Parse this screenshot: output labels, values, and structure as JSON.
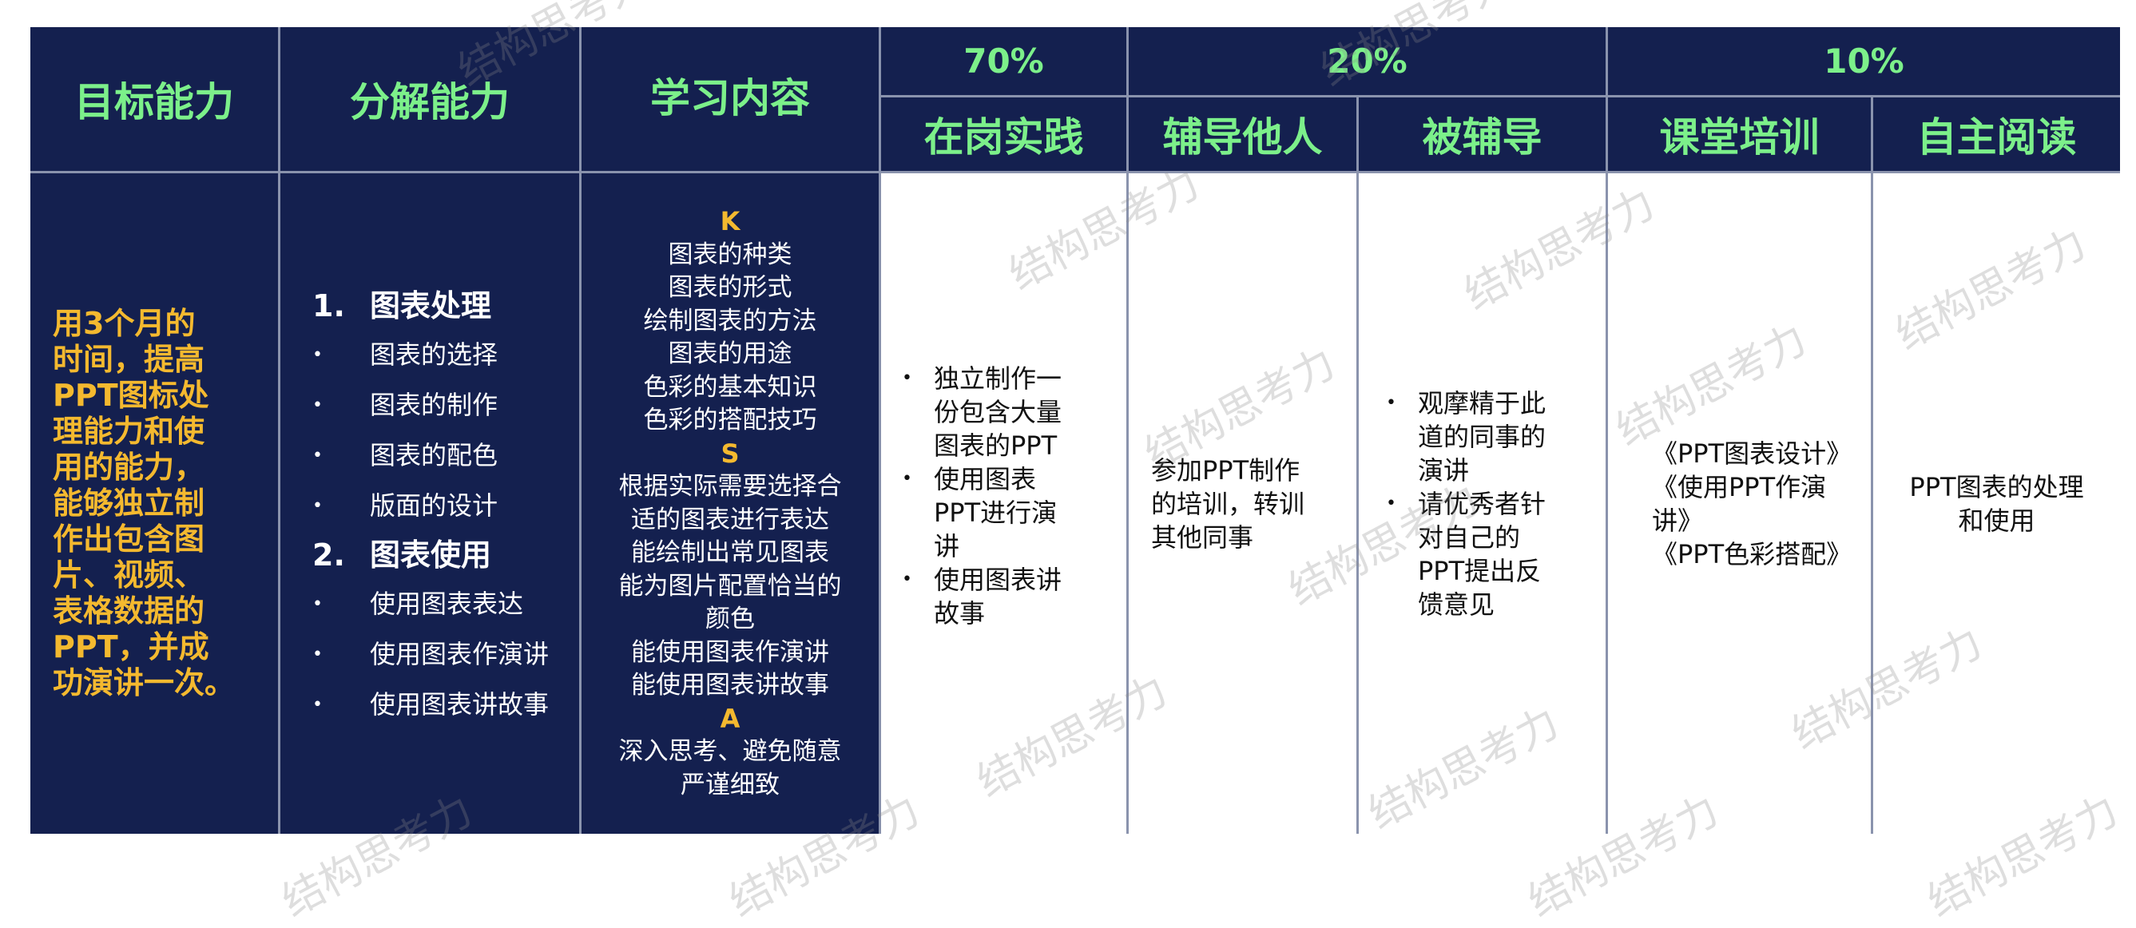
{
  "headers": {
    "goal": "目标能力",
    "decompose": "分解能力",
    "learning": "学习内容",
    "pct70": "70%",
    "pct20": "20%",
    "pct10": "10%",
    "onjob": "在岗实践",
    "coach_others": "辅导他人",
    "being_coached": "被辅导",
    "classroom": "课堂培训",
    "self_reading": "自主阅读"
  },
  "goal_text": "用3个月的时间，提高PPT图标处理能力和使用的能力，能够独立制作出包含图片、视频、表格数据的PPT，并成功演讲一次。",
  "goal_lines": [
    "用3个月的",
    "时间，提高",
    "PPT图标处",
    "理能力和使",
    "用的能力，",
    "能够独立制",
    "作出包含图",
    "片、视频、",
    "表格数据的",
    "PPT，并成",
    "功演讲一次。"
  ],
  "decompose": {
    "sections": [
      {
        "num": "1.",
        "title": "图表处理",
        "items": [
          "图表的选择",
          "图表的制作",
          "图表的配色",
          "版面的设计"
        ]
      },
      {
        "num": "2.",
        "title": "图表使用",
        "items": [
          "使用图表表达",
          "使用图表作演讲",
          "使用图表讲故事"
        ]
      }
    ]
  },
  "learning": {
    "k_letter": "K",
    "k_lines": [
      "图表的种类",
      "图表的形式",
      "绘制图表的方法",
      "图表的用途",
      "色彩的基本知识",
      "色彩的搭配技巧"
    ],
    "s_letter": "S",
    "s_lines": [
      "根据实际需要选择合",
      "适的图表进行表达",
      "能绘制出常见图表",
      "能为图片配置恰当的",
      "颜色",
      "能使用图表作演讲",
      "能使用图表讲故事"
    ],
    "a_letter": "A",
    "a_lines": [
      "深入思考、避免随意",
      "严谨细致"
    ]
  },
  "onjob": {
    "bullets": [
      [
        "独立制作一",
        "份包含大量",
        "图表的PPT"
      ],
      [
        "使用图表",
        "PPT进行演",
        "讲"
      ],
      [
        "使用图表讲",
        "故事"
      ]
    ]
  },
  "coach_others": {
    "lines": [
      "参加PPT制作",
      "的培训，转训",
      "其他同事"
    ]
  },
  "being_coached": {
    "bullets": [
      [
        "观摩精于此",
        "道的同事的",
        "演讲"
      ],
      [
        "请优秀者针",
        "对自己的",
        "PPT提出反",
        "馈意见"
      ]
    ]
  },
  "classroom": {
    "lines": [
      "《PPT图表设计》",
      "《使用PPT作演讲》",
      "《PPT色彩搭配》"
    ]
  },
  "self_reading": {
    "lines": [
      "PPT图表的处理",
      "和使用"
    ]
  },
  "watermark": "结构思考力",
  "bullet_char": "•"
}
